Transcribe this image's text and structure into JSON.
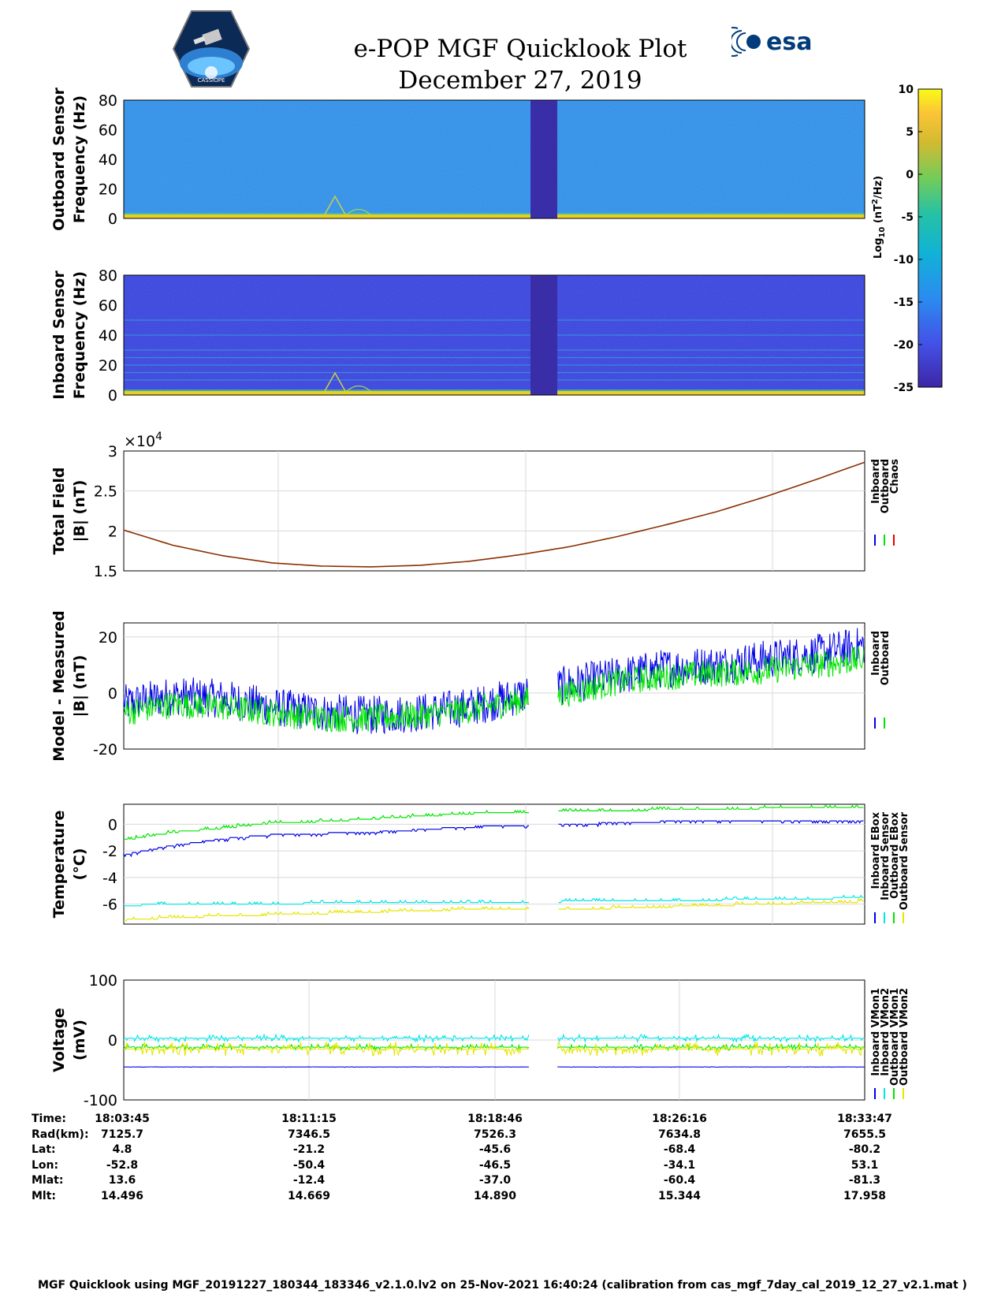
{
  "header": {
    "title": "e-POP MGF Quicklook Plot",
    "date": "December 27, 2019",
    "esa_logo_text": "esa",
    "cassiope_logo_text": "CASSIOPE"
  },
  "colors": {
    "spectrogram_outboard": "#2f8be6",
    "spectrogram_inboard": "#3a3fd8",
    "gap": "#3a2ea8",
    "inboard": "#0000e6",
    "outboard": "#00e600",
    "chaos": "#e60000",
    "cyan": "#00e6e6",
    "yellow": "#e6e600",
    "line_total_field": "#8a3000"
  },
  "colorbar": {
    "label": "Log10 (nT2/Hz)",
    "ticks": [
      "10",
      "5",
      "0",
      "-5",
      "-10",
      "-15",
      "-20",
      "-25"
    ]
  },
  "chart_data": [
    {
      "type": "heatmap",
      "name": "outboard-spectrogram",
      "ylabel": [
        "Outboard Sensor",
        "Frequency (Hz)"
      ],
      "ylim": [
        0,
        80
      ],
      "yticks": [
        "80",
        "60",
        "40",
        "20",
        "0"
      ],
      "zlim": [
        -25,
        10
      ]
    },
    {
      "type": "heatmap",
      "name": "inboard-spectrogram",
      "ylabel": [
        "Inboard Sensor",
        "Frequency (Hz)"
      ],
      "ylim": [
        0,
        80
      ],
      "yticks": [
        "80",
        "60",
        "40",
        "20",
        "0"
      ],
      "zlim": [
        -25,
        10
      ]
    },
    {
      "type": "line",
      "name": "total-field",
      "ylabel": [
        "Total Field",
        "|B| (nT)"
      ],
      "ylim": [
        15000,
        30000
      ],
      "yticks": [
        "3",
        "2.5",
        "2",
        "1.5"
      ],
      "multiplier": "×10",
      "multiplier_exp": "4",
      "legend": [
        "Inboard",
        "Outboard",
        "Chaos"
      ],
      "x_minutes": [
        0,
        2,
        4,
        6,
        8,
        10,
        12,
        14,
        16,
        18,
        20,
        22,
        24,
        26,
        28,
        30
      ],
      "values": [
        20100,
        18200,
        16900,
        16000,
        15600,
        15500,
        15700,
        16200,
        17000,
        18000,
        19300,
        20800,
        22400,
        24300,
        26400,
        28600
      ]
    },
    {
      "type": "line",
      "name": "model-minus-measured",
      "ylabel": [
        "Model - Measured",
        "|B| (nT)"
      ],
      "ylim": [
        -20,
        25
      ],
      "yticks": [
        "20",
        "0",
        "-20"
      ],
      "legend": [
        "Inboard",
        "Outboard"
      ],
      "x_minutes": [
        0,
        2,
        4,
        6,
        8,
        10,
        12,
        14,
        16,
        18,
        20,
        22,
        24,
        26,
        28,
        30
      ],
      "series": [
        {
          "name": "Inboard",
          "values": [
            -4,
            -1,
            -2,
            -5,
            -7,
            -8,
            -7,
            -5,
            -1,
            3,
            6,
            9,
            10,
            12,
            14,
            17
          ]
        },
        {
          "name": "Outboard",
          "values": [
            -7,
            -4,
            -5,
            -7,
            -9,
            -9,
            -8,
            -6,
            -3,
            0,
            4,
            6,
            7,
            8,
            10,
            12
          ]
        }
      ]
    },
    {
      "type": "line",
      "name": "temperature",
      "ylabel": [
        "Temperature",
        "(°C)"
      ],
      "ylim": [
        -7.5,
        1.5
      ],
      "yticks": [
        "0",
        "-2",
        "-4",
        "-6"
      ],
      "legend": [
        "Inboard EBox",
        "Inboard Sensor",
        "Outboard EBox",
        "Outboard Sensor"
      ],
      "x_minutes": [
        0,
        2,
        4,
        6,
        8,
        10,
        12,
        14,
        16,
        18,
        20,
        22,
        24,
        26,
        28,
        30
      ],
      "series": [
        {
          "name": "Inboard EBox",
          "values": [
            -1.2,
            -0.6,
            -0.3,
            0.1,
            0.2,
            0.4,
            0.6,
            0.8,
            0.9,
            1.0,
            1.0,
            1.1,
            1.1,
            1.2,
            1.2,
            1.2
          ]
        },
        {
          "name": "Inboard Sensor",
          "values": [
            -2.3,
            -1.6,
            -1.1,
            -0.8,
            -0.7,
            -0.6,
            -0.4,
            -0.2,
            -0.1,
            0.0,
            0.1,
            0.2,
            0.2,
            0.3,
            0.3,
            0.3
          ]
        },
        {
          "name": "Outboard EBox",
          "values": [
            -6.1,
            -6.0,
            -6.0,
            -6.0,
            -5.9,
            -5.9,
            -5.9,
            -5.9,
            -5.9,
            -5.8,
            -5.8,
            -5.8,
            -5.7,
            -5.6,
            -5.6,
            -5.5
          ]
        },
        {
          "name": "Outboard Sensor",
          "values": [
            -7.2,
            -7.0,
            -6.9,
            -6.8,
            -6.7,
            -6.6,
            -6.5,
            -6.4,
            -6.4,
            -6.4,
            -6.3,
            -6.2,
            -6.1,
            -6.0,
            -5.9,
            -5.8
          ]
        }
      ]
    },
    {
      "type": "line",
      "name": "voltage",
      "ylabel": [
        "Voltage",
        "(mV)"
      ],
      "ylim": [
        -100,
        100
      ],
      "yticks": [
        "100",
        "0",
        "-100"
      ],
      "legend": [
        "Inboard VMon1",
        "Inboard VMon2",
        "Outboard VMon1",
        "Outboard VMon2"
      ],
      "x_minutes": [
        0,
        30
      ],
      "series": [
        {
          "name": "Inboard VMon1",
          "values": [
            -45,
            -45
          ]
        },
        {
          "name": "Inboard VMon2",
          "values": [
            3,
            3
          ]
        },
        {
          "name": "Outboard VMon1",
          "values": [
            -12,
            -12
          ]
        },
        {
          "name": "Outboard VMon2",
          "values": [
            -15,
            -15
          ]
        }
      ]
    }
  ],
  "orbit_table": {
    "rows": [
      {
        "label": "Time:",
        "values": [
          "18:03:45",
          "18:11:15",
          "18:18:46",
          "18:26:16",
          "18:33:47"
        ]
      },
      {
        "label": "Rad(km):",
        "values": [
          "7125.7",
          "7346.5",
          "7526.3",
          "7634.8",
          "7655.5"
        ]
      },
      {
        "label": "Lat:",
        "values": [
          "4.8",
          "-21.2",
          "-45.6",
          "-68.4",
          "-80.2"
        ]
      },
      {
        "label": "Lon:",
        "values": [
          "-52.8",
          "-50.4",
          "-46.5",
          "-34.1",
          "53.1"
        ]
      },
      {
        "label": "Mlat:",
        "values": [
          "13.6",
          "-12.4",
          "-37.0",
          "-60.4",
          "-81.3"
        ]
      },
      {
        "label": "Mlt:",
        "values": [
          "14.496",
          "14.669",
          "14.890",
          "15.344",
          "17.958"
        ]
      }
    ]
  },
  "footer": "MGF Quicklook using MGF_20191227_180344_183346_v2.1.0.lv2 on 25-Nov-2021 16:40:24 (calibration from cas_mgf_7day_cal_2019_12_27_v2.1.mat )"
}
